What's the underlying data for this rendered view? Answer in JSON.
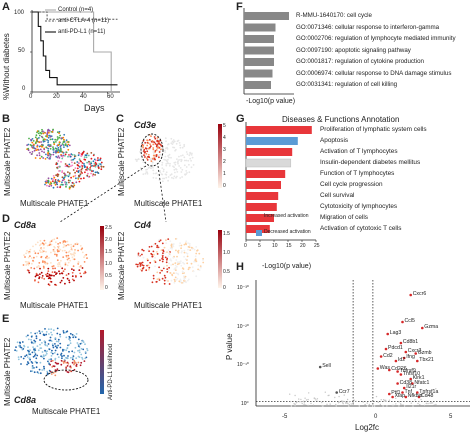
{
  "panel_letters": [
    "A",
    "B",
    "C",
    "D",
    "E",
    "F",
    "G",
    "H"
  ],
  "panelA": {
    "ylabel": "%Without diabetes",
    "xlabel": "Days",
    "yticks": [
      "100",
      "50",
      "0"
    ],
    "xticks": [
      "0",
      "20",
      "40",
      "60"
    ],
    "legend": [
      "Control (n=4)",
      "anti-CTLA-4 (n=11)",
      "anti-PD-L1 (n=11)"
    ]
  },
  "phate": {
    "xlabel": "Multiscale PHATE1",
    "ylabel": "Multiscale PHATE2",
    "genes": {
      "C": "Cd3e",
      "D1": "Cd8a",
      "D2": "Cd4",
      "E": "Cd8a"
    },
    "scaleC": [
      "5",
      "4",
      "3",
      "2",
      "1",
      "0"
    ],
    "scaleD1": [
      "2.5",
      "2.0",
      "1.5",
      "1.0",
      "0.5",
      "0"
    ],
    "scaleD2": [
      "1.5",
      "1.0",
      "0.5",
      "0"
    ],
    "scaleE_label": "Anti-PD-L1 likelihood",
    "colors": {
      "red": "#d7301f",
      "blue": "#2c7bb6",
      "light": "#fdd0a2"
    }
  },
  "chart_data": [
    {
      "type": "line",
      "panel": "A",
      "xlabel": "Days",
      "ylabel": "%Without diabetes",
      "xlim": [
        0,
        70
      ],
      "ylim": [
        0,
        100
      ],
      "series": [
        {
          "name": "Control (n=4)",
          "style": "gray",
          "x": [
            0,
            49,
            49,
            63,
            63
          ],
          "y": [
            100,
            100,
            50,
            50,
            0
          ]
        },
        {
          "name": "anti-CTLA-4 (n=11)",
          "style": "dashed",
          "x": [
            0,
            12,
            12,
            68
          ],
          "y": [
            100,
            100,
            91,
            91
          ]
        },
        {
          "name": "anti-PD-L1 (n=11)",
          "style": "black",
          "x": [
            0,
            5,
            5,
            7,
            7,
            9,
            9,
            11,
            11,
            14,
            14,
            20,
            20,
            68
          ],
          "y": [
            100,
            100,
            82,
            82,
            64,
            64,
            45,
            45,
            27,
            27,
            18,
            18,
            9,
            9
          ]
        }
      ]
    },
    {
      "type": "bar",
      "panel": "F",
      "xlabel": "-Log10(p value)",
      "categories": [
        "R-MMU-1640170: cell cycle",
        "GO:0071346: cellular response to interferon-gamma",
        "GO:0002706: regulation of lymphocyte mediated immunity",
        "GO:0097190: apoptotic signaling pathway",
        "GO:0001817: regulation of cytokine production",
        "GO:0006974: cellular response to DNA damage stimulus",
        "GO:0031341: regulation of cell killing"
      ],
      "values": [
        30,
        21,
        20,
        20,
        20,
        19,
        18
      ],
      "xlim": [
        0,
        32
      ],
      "colors": [
        "#888888"
      ]
    },
    {
      "type": "bar",
      "panel": "G",
      "title": "Diseases & Functions Annotation",
      "xlabel": "-Log10(p value)",
      "xticks": [
        "0",
        "5",
        "10",
        "15",
        "20",
        "25"
      ],
      "categories": [
        "Proliferation of lymphatic system cells",
        "Apoptosis",
        "Activation of T lymphocytes",
        "Insulin-dependent diabetes mellitus",
        "Function of T lymphocytes",
        "Cell cycle progression",
        "Cell survival",
        "Cytotoxicity of lymphocytes",
        "Migration of cells",
        "Activation of cytotoxic T cells"
      ],
      "values": [
        23.5,
        18.5,
        16.5,
        16,
        14,
        12.5,
        11.5,
        11,
        10,
        8.5
      ],
      "kind": [
        "inc",
        "dec",
        "inc",
        "none",
        "inc",
        "inc",
        "inc",
        "inc",
        "inc",
        "inc"
      ],
      "xlim": [
        0,
        25
      ],
      "legend": [
        "Increased activation",
        "Decreased activation"
      ],
      "colors": {
        "inc": "#e8363a",
        "dec": "#5b9bd5",
        "none": "#d9d9d9"
      }
    },
    {
      "type": "scatter",
      "panel": "H",
      "xlabel": "Log2fc",
      "ylabel": "P value",
      "xticks": [
        "-5",
        "0",
        "5"
      ],
      "yticks": [
        "10⁻³⁰",
        "10⁻²⁰",
        "10⁻¹⁰",
        "10⁰"
      ],
      "labeled_points": [
        {
          "label": "Cxcr6",
          "x": 2.9,
          "y": 37
        },
        {
          "label": "Ccl5",
          "x": 2.4,
          "y": 28
        },
        {
          "label": "Gzma",
          "x": 3.6,
          "y": 26
        },
        {
          "label": "Lag3",
          "x": 1.5,
          "y": 24
        },
        {
          "label": "Cd8b1",
          "x": 2.3,
          "y": 21
        },
        {
          "label": "Pdcd1",
          "x": 1.4,
          "y": 19
        },
        {
          "label": "Cxcr3",
          "x": 2.6,
          "y": 18
        },
        {
          "label": "Gzmb",
          "x": 3.2,
          "y": 17.5
        },
        {
          "label": "Cd2",
          "x": 1.1,
          "y": 16.5
        },
        {
          "label": "Ifng",
          "x": 2.5,
          "y": 16
        },
        {
          "label": "Id2",
          "x": 2.0,
          "y": 15
        },
        {
          "label": "Tbx21",
          "x": 3.3,
          "y": 15
        },
        {
          "label": "Sell",
          "x": -2.6,
          "y": 13
        },
        {
          "label": "Was",
          "x": 0.9,
          "y": 12.5
        },
        {
          "label": "Cd226",
          "x": 1.6,
          "y": 12
        },
        {
          "label": "Tnfrsf9",
          "x": 2.1,
          "y": 11.5
        },
        {
          "label": "Tnfsf10",
          "x": 2.3,
          "y": 10.5
        },
        {
          "label": "Klrk1",
          "x": 2.9,
          "y": 9
        },
        {
          "label": "Cd38",
          "x": 2.1,
          "y": 7.5
        },
        {
          "label": "Nfatc1",
          "x": 3.0,
          "y": 7.5
        },
        {
          "label": "Il21r",
          "x": 2.5,
          "y": 6
        },
        {
          "label": "Ccr7",
          "x": -1.6,
          "y": 4.5
        },
        {
          "label": "Tnf",
          "x": 2.4,
          "y": 4.5
        },
        {
          "label": "Tnfrsf1a",
          "x": 3.3,
          "y": 4.5
        },
        {
          "label": "Ptf1",
          "x": 1.6,
          "y": 4
        },
        {
          "label": "Xiap",
          "x": 1.8,
          "y": 3
        },
        {
          "label": "Nfkbid",
          "x": 2.6,
          "y": 3
        },
        {
          "label": "Cd48",
          "x": 3.4,
          "y": 3
        }
      ],
      "xlim": [
        -6.5,
        6.5
      ],
      "ylim": [
        0,
        42
      ]
    }
  ]
}
